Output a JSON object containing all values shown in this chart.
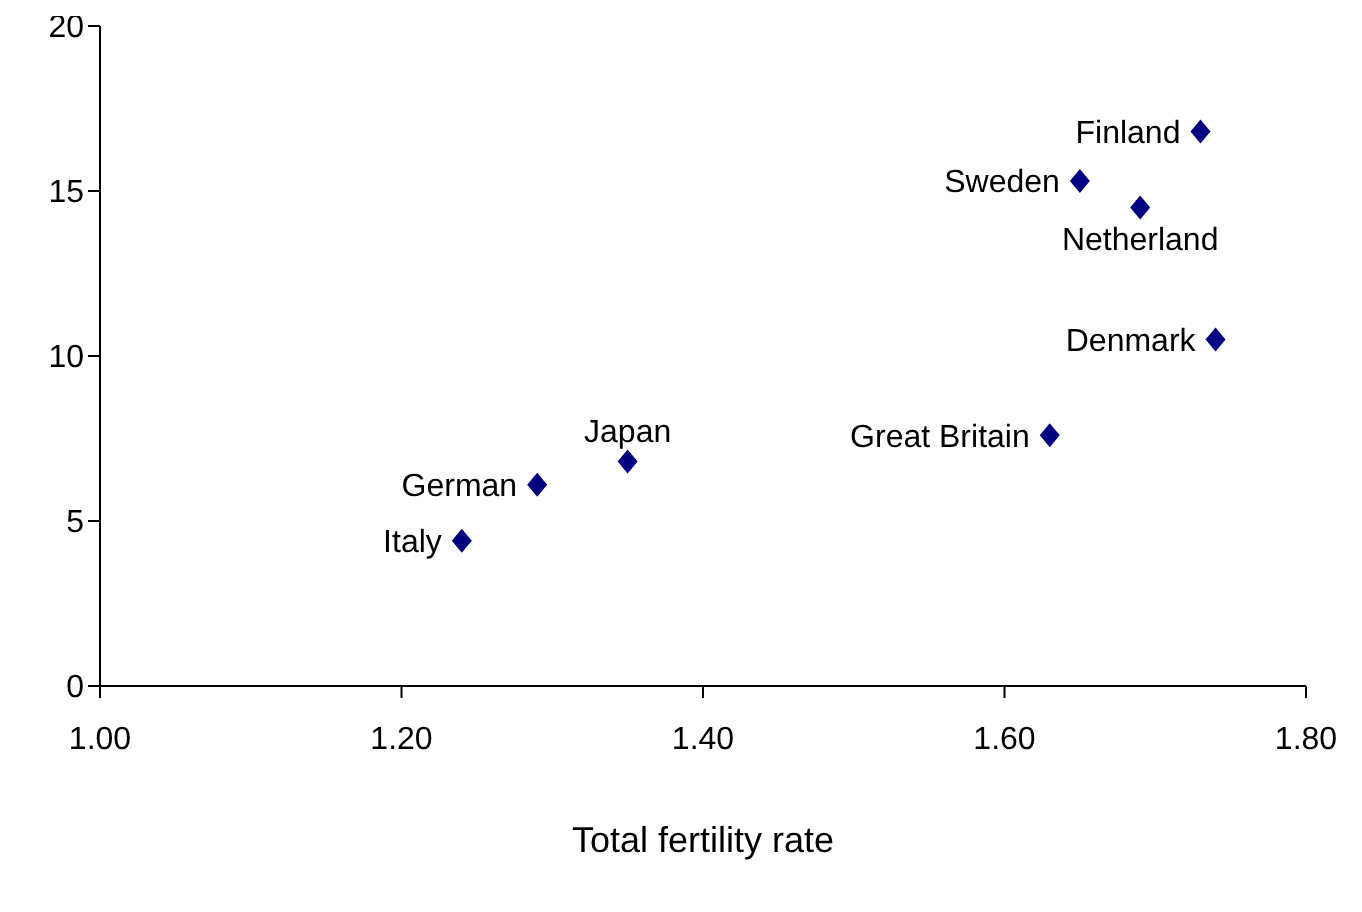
{
  "chart_data": {
    "type": "scatter",
    "xlabel": "Total fertility rate",
    "x": [
      1.24,
      1.29,
      1.35,
      1.63,
      1.74,
      1.69,
      1.65,
      1.73
    ],
    "values": [
      4.4,
      6.1,
      6.8,
      7.6,
      10.5,
      14.5,
      15.3,
      16.8
    ],
    "color": "#000080",
    "marker": "diamond",
    "grid": false,
    "xlim": [
      1,
      1.8
    ],
    "xticks": [
      {
        "value": 1,
        "label": "1.00"
      },
      {
        "value": 1.2,
        "label": "1.20"
      },
      {
        "value": 1.4,
        "label": "1.40"
      },
      {
        "value": 1.6,
        "label": "1.60"
      },
      {
        "value": 1.8,
        "label": "1.80"
      }
    ],
    "ylim": [
      0,
      20
    ],
    "yticks": [
      0,
      5,
      10,
      15,
      20
    ],
    "annotations": [
      {
        "text": "Italy",
        "x": 1.24,
        "y": 4.4
      },
      {
        "text": "German",
        "x": 1.29,
        "y": 6.1
      },
      {
        "text": "Japan",
        "x": 1.35,
        "y": 6.8
      },
      {
        "text": "Great Britain",
        "x": 1.63,
        "y": 7.6
      },
      {
        "text": "Denmark",
        "x": 1.74,
        "y": 10.5
      },
      {
        "text": "Netherland",
        "x": 1.69,
        "y": 14.5
      },
      {
        "text": "Sweden",
        "x": 1.65,
        "y": 15.3
      },
      {
        "text": "Finland",
        "x": 1.73,
        "y": 16.8
      }
    ]
  }
}
